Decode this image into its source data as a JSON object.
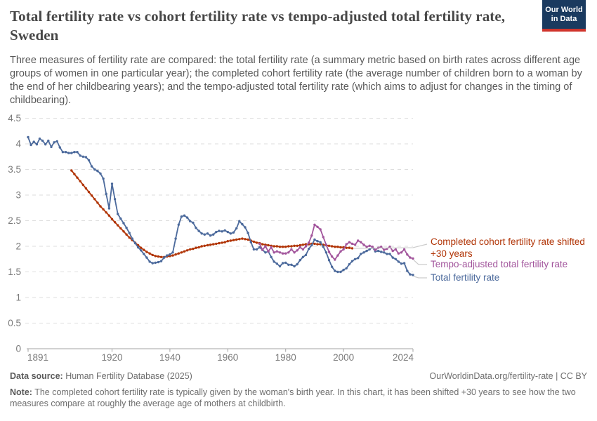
{
  "logo": {
    "line1": "Our World",
    "line2": "in Data",
    "bg_color": "#1a3a5f",
    "bar_color": "#d0342c"
  },
  "header": {
    "title": "Total fertility rate vs cohort fertility rate vs tempo-adjusted total fertility rate, Sweden",
    "subtitle": "Three measures of fertility rate are compared: the total fertility rate (a summary metric based on birth rates across different age groups of women in one particular year); the completed cohort fertility rate (the average number of children born to a woman by the end of her childbearing years); and the tempo-adjusted total fertility rate (which aims to adjust for changes in the timing of childbearing)."
  },
  "chart_data": {
    "type": "line",
    "title": "Total fertility rate vs cohort fertility rate vs tempo-adjusted total fertility rate, Sweden",
    "xlabel": "",
    "ylabel": "",
    "grid": true,
    "legend_position": "right",
    "x_axis": {
      "min": 1891,
      "max": 2024,
      "ticks": [
        1891,
        1920,
        1940,
        1960,
        1980,
        2000,
        2024
      ]
    },
    "y_axis": {
      "min": 0,
      "max": 4.5,
      "ticks": [
        0,
        0.5,
        1,
        1.5,
        2,
        2.5,
        3,
        3.5,
        4,
        4.5
      ]
    },
    "series": [
      {
        "name": "Completed cohort fertility rate shifted +30 years",
        "legend_lines": [
          "Completed cohort fertility rate shifted",
          "+30 years"
        ],
        "color": "#b13507",
        "start_year": 1906,
        "values": [
          3.48,
          3.41,
          3.34,
          3.27,
          3.2,
          3.13,
          3.06,
          2.99,
          2.92,
          2.85,
          2.78,
          2.72,
          2.66,
          2.6,
          2.53,
          2.47,
          2.41,
          2.35,
          2.29,
          2.23,
          2.17,
          2.12,
          2.07,
          2.02,
          1.97,
          1.93,
          1.89,
          1.86,
          1.83,
          1.81,
          1.8,
          1.79,
          1.79,
          1.8,
          1.81,
          1.82,
          1.84,
          1.86,
          1.88,
          1.9,
          1.92,
          1.94,
          1.95,
          1.97,
          1.98,
          2.0,
          2.01,
          2.02,
          2.03,
          2.04,
          2.05,
          2.06,
          2.07,
          2.08,
          2.1,
          2.11,
          2.12,
          2.13,
          2.14,
          2.15,
          2.14,
          2.13,
          2.11,
          2.09,
          2.07,
          2.06,
          2.04,
          2.03,
          2.02,
          2.01,
          2.0,
          2.0,
          1.99,
          1.99,
          1.99,
          2.0,
          2.0,
          2.01,
          2.01,
          2.02,
          2.03,
          2.04,
          2.04,
          2.05,
          2.05,
          2.04,
          2.04,
          2.03,
          2.02,
          2.01,
          2.0,
          1.99,
          1.99,
          1.98,
          1.98,
          1.97,
          1.97,
          1.96
        ]
      },
      {
        "name": "Tempo-adjusted total fertility rate",
        "legend_lines": [
          "Tempo-adjusted total fertility rate"
        ],
        "color": "#a2559c",
        "start_year": 1971,
        "values": [
          2.05,
          1.93,
          2.0,
          1.9,
          1.98,
          1.88,
          1.9,
          1.88,
          1.86,
          1.86,
          1.88,
          1.94,
          1.88,
          1.92,
          1.98,
          1.94,
          2.0,
          2.07,
          2.21,
          2.42,
          2.38,
          2.33,
          2.18,
          2.03,
          1.89,
          1.8,
          1.74,
          1.82,
          1.9,
          1.94,
          2.04,
          2.08,
          2.05,
          2.03,
          2.11,
          2.08,
          2.03,
          1.99,
          2.01,
          1.99,
          1.93,
          1.97,
          1.99,
          1.93,
          1.95,
          1.99,
          1.91,
          1.94,
          1.86,
          1.88,
          1.94,
          1.84,
          1.78,
          1.76
        ]
      },
      {
        "name": "Total fertility rate",
        "legend_lines": [
          "Total fertility rate"
        ],
        "color": "#4c6a9c",
        "start_year": 1891,
        "values": [
          4.13,
          3.98,
          4.04,
          3.99,
          4.1,
          4.06,
          3.99,
          4.06,
          3.94,
          4.03,
          4.05,
          3.93,
          3.84,
          3.84,
          3.82,
          3.82,
          3.84,
          3.84,
          3.77,
          3.75,
          3.74,
          3.68,
          3.56,
          3.5,
          3.47,
          3.42,
          3.32,
          3.02,
          2.74,
          3.22,
          2.92,
          2.63,
          2.54,
          2.45,
          2.36,
          2.26,
          2.15,
          2.06,
          1.98,
          1.92,
          1.85,
          1.78,
          1.7,
          1.67,
          1.68,
          1.69,
          1.71,
          1.78,
          1.82,
          1.84,
          1.88,
          2.15,
          2.42,
          2.58,
          2.6,
          2.56,
          2.49,
          2.46,
          2.36,
          2.3,
          2.25,
          2.23,
          2.25,
          2.21,
          2.23,
          2.28,
          2.3,
          2.29,
          2.31,
          2.28,
          2.25,
          2.27,
          2.35,
          2.49,
          2.43,
          2.37,
          2.26,
          2.08,
          1.94,
          1.94,
          1.98,
          1.93,
          1.88,
          1.9,
          1.79,
          1.7,
          1.66,
          1.61,
          1.67,
          1.68,
          1.64,
          1.64,
          1.61,
          1.65,
          1.73,
          1.79,
          1.83,
          1.95,
          2.02,
          2.13,
          2.1,
          2.08,
          1.99,
          1.88,
          1.73,
          1.6,
          1.52,
          1.5,
          1.5,
          1.54,
          1.57,
          1.65,
          1.71,
          1.75,
          1.77,
          1.85,
          1.88,
          1.91,
          1.94,
          1.98,
          1.9,
          1.91,
          1.89,
          1.88,
          1.85,
          1.85,
          1.78,
          1.75,
          1.7,
          1.66,
          1.67,
          1.52,
          1.45,
          1.44
        ]
      }
    ]
  },
  "footer": {
    "datasource_label": "Data source:",
    "datasource": " Human Fertility Database (2025)",
    "link": "OurWorldinData.org/fertility-rate | CC BY",
    "note_label": "Note:",
    "note": " The completed cohort fertility rate is typically given by the woman's birth year. In this chart, it has been shifted +30 years to see how the two measures compare at roughly the average age of mothers at childbirth."
  }
}
